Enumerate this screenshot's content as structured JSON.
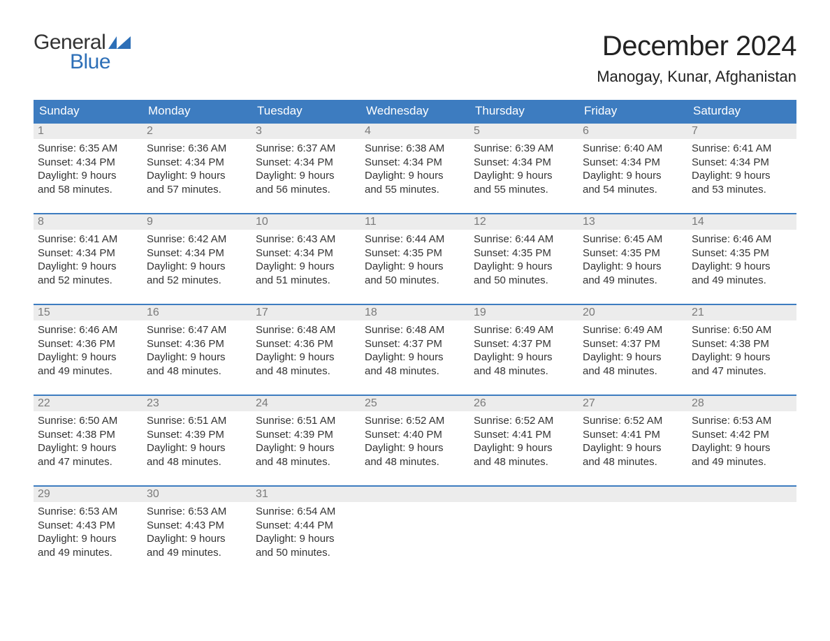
{
  "brand": {
    "word1": "General",
    "word2": "Blue",
    "accent_color": "#2d6fb7"
  },
  "title": "December 2024",
  "location": "Manogay, Kunar, Afghanistan",
  "colors": {
    "header_bg": "#3d7cc0",
    "header_text": "#ffffff",
    "daynum_bg": "#ececec",
    "daynum_text": "#7a7a7a",
    "body_text": "#333333",
    "week_rule": "#3d7cc0",
    "page_bg": "#ffffff"
  },
  "layout": {
    "columns": 7,
    "rows": 5,
    "cell_fontsize": 15,
    "header_fontsize": 17,
    "title_fontsize": 40,
    "location_fontsize": 22
  },
  "day_headers": [
    "Sunday",
    "Monday",
    "Tuesday",
    "Wednesday",
    "Thursday",
    "Friday",
    "Saturday"
  ],
  "weeks": [
    [
      {
        "n": "1",
        "sunrise": "Sunrise: 6:35 AM",
        "sunset": "Sunset: 4:34 PM",
        "d1": "Daylight: 9 hours",
        "d2": "and 58 minutes."
      },
      {
        "n": "2",
        "sunrise": "Sunrise: 6:36 AM",
        "sunset": "Sunset: 4:34 PM",
        "d1": "Daylight: 9 hours",
        "d2": "and 57 minutes."
      },
      {
        "n": "3",
        "sunrise": "Sunrise: 6:37 AM",
        "sunset": "Sunset: 4:34 PM",
        "d1": "Daylight: 9 hours",
        "d2": "and 56 minutes."
      },
      {
        "n": "4",
        "sunrise": "Sunrise: 6:38 AM",
        "sunset": "Sunset: 4:34 PM",
        "d1": "Daylight: 9 hours",
        "d2": "and 55 minutes."
      },
      {
        "n": "5",
        "sunrise": "Sunrise: 6:39 AM",
        "sunset": "Sunset: 4:34 PM",
        "d1": "Daylight: 9 hours",
        "d2": "and 55 minutes."
      },
      {
        "n": "6",
        "sunrise": "Sunrise: 6:40 AM",
        "sunset": "Sunset: 4:34 PM",
        "d1": "Daylight: 9 hours",
        "d2": "and 54 minutes."
      },
      {
        "n": "7",
        "sunrise": "Sunrise: 6:41 AM",
        "sunset": "Sunset: 4:34 PM",
        "d1": "Daylight: 9 hours",
        "d2": "and 53 minutes."
      }
    ],
    [
      {
        "n": "8",
        "sunrise": "Sunrise: 6:41 AM",
        "sunset": "Sunset: 4:34 PM",
        "d1": "Daylight: 9 hours",
        "d2": "and 52 minutes."
      },
      {
        "n": "9",
        "sunrise": "Sunrise: 6:42 AM",
        "sunset": "Sunset: 4:34 PM",
        "d1": "Daylight: 9 hours",
        "d2": "and 52 minutes."
      },
      {
        "n": "10",
        "sunrise": "Sunrise: 6:43 AM",
        "sunset": "Sunset: 4:34 PM",
        "d1": "Daylight: 9 hours",
        "d2": "and 51 minutes."
      },
      {
        "n": "11",
        "sunrise": "Sunrise: 6:44 AM",
        "sunset": "Sunset: 4:35 PM",
        "d1": "Daylight: 9 hours",
        "d2": "and 50 minutes."
      },
      {
        "n": "12",
        "sunrise": "Sunrise: 6:44 AM",
        "sunset": "Sunset: 4:35 PM",
        "d1": "Daylight: 9 hours",
        "d2": "and 50 minutes."
      },
      {
        "n": "13",
        "sunrise": "Sunrise: 6:45 AM",
        "sunset": "Sunset: 4:35 PM",
        "d1": "Daylight: 9 hours",
        "d2": "and 49 minutes."
      },
      {
        "n": "14",
        "sunrise": "Sunrise: 6:46 AM",
        "sunset": "Sunset: 4:35 PM",
        "d1": "Daylight: 9 hours",
        "d2": "and 49 minutes."
      }
    ],
    [
      {
        "n": "15",
        "sunrise": "Sunrise: 6:46 AM",
        "sunset": "Sunset: 4:36 PM",
        "d1": "Daylight: 9 hours",
        "d2": "and 49 minutes."
      },
      {
        "n": "16",
        "sunrise": "Sunrise: 6:47 AM",
        "sunset": "Sunset: 4:36 PM",
        "d1": "Daylight: 9 hours",
        "d2": "and 48 minutes."
      },
      {
        "n": "17",
        "sunrise": "Sunrise: 6:48 AM",
        "sunset": "Sunset: 4:36 PM",
        "d1": "Daylight: 9 hours",
        "d2": "and 48 minutes."
      },
      {
        "n": "18",
        "sunrise": "Sunrise: 6:48 AM",
        "sunset": "Sunset: 4:37 PM",
        "d1": "Daylight: 9 hours",
        "d2": "and 48 minutes."
      },
      {
        "n": "19",
        "sunrise": "Sunrise: 6:49 AM",
        "sunset": "Sunset: 4:37 PM",
        "d1": "Daylight: 9 hours",
        "d2": "and 48 minutes."
      },
      {
        "n": "20",
        "sunrise": "Sunrise: 6:49 AM",
        "sunset": "Sunset: 4:37 PM",
        "d1": "Daylight: 9 hours",
        "d2": "and 48 minutes."
      },
      {
        "n": "21",
        "sunrise": "Sunrise: 6:50 AM",
        "sunset": "Sunset: 4:38 PM",
        "d1": "Daylight: 9 hours",
        "d2": "and 47 minutes."
      }
    ],
    [
      {
        "n": "22",
        "sunrise": "Sunrise: 6:50 AM",
        "sunset": "Sunset: 4:38 PM",
        "d1": "Daylight: 9 hours",
        "d2": "and 47 minutes."
      },
      {
        "n": "23",
        "sunrise": "Sunrise: 6:51 AM",
        "sunset": "Sunset: 4:39 PM",
        "d1": "Daylight: 9 hours",
        "d2": "and 48 minutes."
      },
      {
        "n": "24",
        "sunrise": "Sunrise: 6:51 AM",
        "sunset": "Sunset: 4:39 PM",
        "d1": "Daylight: 9 hours",
        "d2": "and 48 minutes."
      },
      {
        "n": "25",
        "sunrise": "Sunrise: 6:52 AM",
        "sunset": "Sunset: 4:40 PM",
        "d1": "Daylight: 9 hours",
        "d2": "and 48 minutes."
      },
      {
        "n": "26",
        "sunrise": "Sunrise: 6:52 AM",
        "sunset": "Sunset: 4:41 PM",
        "d1": "Daylight: 9 hours",
        "d2": "and 48 minutes."
      },
      {
        "n": "27",
        "sunrise": "Sunrise: 6:52 AM",
        "sunset": "Sunset: 4:41 PM",
        "d1": "Daylight: 9 hours",
        "d2": "and 48 minutes."
      },
      {
        "n": "28",
        "sunrise": "Sunrise: 6:53 AM",
        "sunset": "Sunset: 4:42 PM",
        "d1": "Daylight: 9 hours",
        "d2": "and 49 minutes."
      }
    ],
    [
      {
        "n": "29",
        "sunrise": "Sunrise: 6:53 AM",
        "sunset": "Sunset: 4:43 PM",
        "d1": "Daylight: 9 hours",
        "d2": "and 49 minutes."
      },
      {
        "n": "30",
        "sunrise": "Sunrise: 6:53 AM",
        "sunset": "Sunset: 4:43 PM",
        "d1": "Daylight: 9 hours",
        "d2": "and 49 minutes."
      },
      {
        "n": "31",
        "sunrise": "Sunrise: 6:54 AM",
        "sunset": "Sunset: 4:44 PM",
        "d1": "Daylight: 9 hours",
        "d2": "and 50 minutes."
      },
      null,
      null,
      null,
      null
    ]
  ]
}
